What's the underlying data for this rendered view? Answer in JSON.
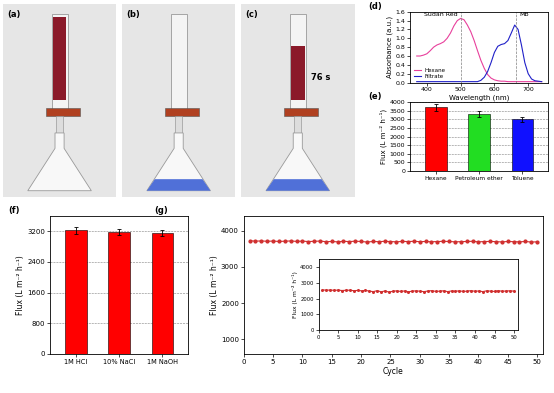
{
  "photos": [
    {
      "panel": "(a)"
    },
    {
      "panel": "(b)"
    },
    {
      "panel": "(c)",
      "annotation": "76 s"
    }
  ],
  "chart_data": [
    {
      "type": "line",
      "title": "(d)",
      "x_label": "Wavelength (nm)",
      "y_label": "Absorbance (a.u.)",
      "x": [
        370,
        380,
        390,
        400,
        410,
        420,
        430,
        440,
        450,
        460,
        470,
        480,
        490,
        500,
        510,
        520,
        530,
        540,
        550,
        560,
        570,
        580,
        590,
        600,
        610,
        620,
        630,
        640,
        650,
        660,
        670,
        680,
        690,
        700,
        710,
        720,
        730,
        740
      ],
      "series": [
        {
          "name": "Hexane",
          "color": "#e8409c",
          "line_style": "solid",
          "values": [
            0.6,
            0.6,
            0.62,
            0.65,
            0.72,
            0.8,
            0.85,
            0.88,
            0.92,
            1.0,
            1.12,
            1.28,
            1.4,
            1.45,
            1.42,
            1.3,
            1.15,
            0.95,
            0.72,
            0.5,
            0.32,
            0.18,
            0.1,
            0.06,
            0.04,
            0.03,
            0.03,
            0.02,
            0.02,
            0.02,
            0.02,
            0.02,
            0.02,
            0.02,
            0.02,
            0.02,
            0.02,
            0.02
          ]
        },
        {
          "name": "Filtrate",
          "color": "#2020c8",
          "line_style": "solid",
          "values": [
            0.02,
            0.02,
            0.02,
            0.02,
            0.02,
            0.02,
            0.02,
            0.02,
            0.02,
            0.02,
            0.02,
            0.02,
            0.02,
            0.02,
            0.02,
            0.02,
            0.02,
            0.02,
            0.02,
            0.05,
            0.12,
            0.25,
            0.45,
            0.68,
            0.82,
            0.86,
            0.88,
            0.95,
            1.12,
            1.3,
            1.2,
            0.85,
            0.45,
            0.2,
            0.08,
            0.04,
            0.03,
            0.02
          ]
        }
      ],
      "xlim": [
        350,
        760
      ],
      "xticks": [
        400,
        500,
        600,
        700
      ],
      "ylim": [
        0.0,
        1.6
      ],
      "yticks": [
        0.0,
        0.2,
        0.4,
        0.6,
        0.8,
        1.0,
        1.2,
        1.4,
        1.6
      ],
      "legend": "lower left",
      "annotations": [
        {
          "text": "Sudan Red",
          "x": 500
        },
        {
          "text": "MB",
          "x": 665
        }
      ]
    },
    {
      "type": "bar",
      "title": "(e)",
      "y_label": "Flux (L m⁻² h⁻¹)",
      "categories": [
        "Hexane",
        "Petroleum ether",
        "Toluene"
      ],
      "values": [
        3700,
        3300,
        3000
      ],
      "errors": [
        200,
        160,
        150
      ],
      "colors": [
        "#ff0000",
        "#22dd22",
        "#1010ff"
      ],
      "ylim": [
        0,
        4000
      ],
      "yticks": [
        0,
        500,
        1000,
        1500,
        2000,
        2500,
        3000,
        3500,
        4000
      ],
      "grid": true
    },
    {
      "type": "bar",
      "title": "(f)",
      "y_label": "Flux (L m⁻² h⁻¹)",
      "categories": [
        "1M HCl",
        "10% NaCl",
        "1M NaOH"
      ],
      "values": [
        3230,
        3180,
        3150
      ],
      "errors": [
        90,
        80,
        80
      ],
      "color": "#ff0000",
      "ylim": [
        0,
        3600
      ],
      "yticks": [
        0,
        800,
        1600,
        2400,
        3200
      ],
      "grid": true
    },
    {
      "type": "line",
      "title": "(g)",
      "x_label": "Cycle",
      "y_label": "Flux (L m⁻² h⁻¹)",
      "x": [
        1,
        2,
        3,
        4,
        5,
        6,
        7,
        8,
        9,
        10,
        11,
        12,
        13,
        14,
        15,
        16,
        17,
        18,
        19,
        20,
        21,
        22,
        23,
        24,
        25,
        26,
        27,
        28,
        29,
        30,
        31,
        32,
        33,
        34,
        35,
        36,
        37,
        38,
        39,
        40,
        41,
        42,
        43,
        44,
        45,
        46,
        47,
        48,
        49,
        50
      ],
      "series": [
        {
          "color": "#d03030",
          "marker": "circle",
          "line_style": "solid",
          "values": [
            3720,
            3710,
            3715,
            3705,
            3712,
            3700,
            3708,
            3715,
            3702,
            3710,
            3698,
            3705,
            3712,
            3695,
            3700,
            3690,
            3705,
            3698,
            3708,
            3700,
            3685,
            3700,
            3695,
            3705,
            3698,
            3690,
            3702,
            3698,
            3705,
            3695,
            3700,
            3692,
            3698,
            3705,
            3700,
            3690,
            3695,
            3700,
            3705,
            3690,
            3698,
            3702,
            3695,
            3688,
            3700,
            3695,
            3690,
            3700,
            3685,
            3690
          ]
        }
      ],
      "xlim": [
        0,
        51
      ],
      "xticks": [
        0,
        5,
        10,
        15,
        20,
        25,
        30,
        35,
        40,
        45,
        50
      ],
      "ylim": [
        600,
        4400
      ],
      "yticks": [
        1000,
        2000,
        3000,
        4000
      ]
    },
    {
      "type": "line",
      "y_label": "Flux (L m⁻² h⁻¹)",
      "x": [
        1,
        2,
        3,
        4,
        5,
        6,
        7,
        8,
        9,
        10,
        11,
        12,
        13,
        14,
        15,
        16,
        17,
        18,
        19,
        20,
        21,
        22,
        23,
        24,
        25,
        26,
        27,
        28,
        29,
        30,
        31,
        32,
        33,
        34,
        35,
        36,
        37,
        38,
        39,
        40,
        41,
        42,
        43,
        44,
        45,
        46,
        47,
        48,
        49,
        50
      ],
      "series": [
        {
          "color": "#d03030",
          "marker": "circle",
          "line_style": "solid",
          "values": [
            2560,
            2540,
            2550,
            2530,
            2545,
            2520,
            2535,
            2540,
            2510,
            2525,
            2500,
            2530,
            2480,
            2450,
            2510,
            2440,
            2490,
            2420,
            2470,
            2500,
            2460,
            2490,
            2440,
            2480,
            2500,
            2470,
            2450,
            2490,
            2510,
            2460,
            2480,
            2500,
            2450,
            2490,
            2470,
            2500,
            2460,
            2480,
            2510,
            2470,
            2490,
            2450,
            2500,
            2480,
            2460,
            2510,
            2470,
            2490,
            2500,
            2480
          ]
        }
      ],
      "xlim": [
        0,
        51
      ],
      "xticks": [
        0,
        5,
        10,
        15,
        20,
        25,
        30,
        35,
        40,
        45,
        50
      ],
      "ylim": [
        0,
        4500
      ],
      "yticks": [
        0,
        1000,
        2000,
        3000,
        4000
      ]
    }
  ]
}
